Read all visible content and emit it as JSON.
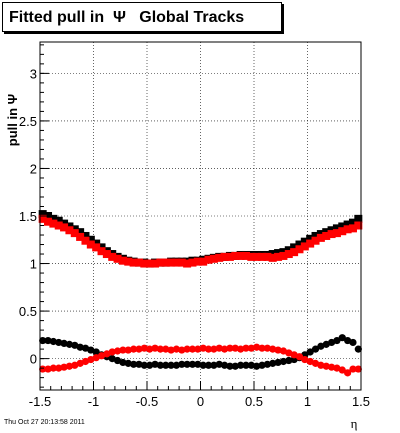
{
  "footer": {
    "timestamp": "Thu Oct 27 20:13:58 2011"
  },
  "chart_data": {
    "type": "scatter",
    "title": "Fitted pull in  Ψ   Global Tracks",
    "xlabel": "η",
    "ylabel": "pull in Ψ",
    "xlim": [
      -1.5,
      1.5
    ],
    "ylim": [
      -0.33,
      3.33
    ],
    "xticks": [
      -1.5,
      -1,
      -0.5,
      0,
      0.5,
      1,
      1.5
    ],
    "xtick_labels": [
      "-1.5",
      "-1",
      "-0.5",
      "0",
      "0.5",
      "1",
      "1.5"
    ],
    "yticks": [
      0,
      0.5,
      1,
      1.5,
      2,
      2.5,
      3
    ],
    "ytick_labels": [
      "0",
      "0.5",
      "1",
      "1.5",
      "2",
      "2.5",
      "3"
    ],
    "grid": true,
    "series": [
      {
        "color": "#000000",
        "marker": "square",
        "x": [
          -1.475,
          -1.425,
          -1.375,
          -1.325,
          -1.275,
          -1.225,
          -1.175,
          -1.125,
          -1.075,
          -1.025,
          -0.975,
          -0.925,
          -0.875,
          -0.825,
          -0.775,
          -0.725,
          -0.675,
          -0.625,
          -0.575,
          -0.525,
          -0.475,
          -0.425,
          -0.375,
          -0.325,
          -0.275,
          -0.225,
          -0.175,
          -0.125,
          -0.075,
          -0.025,
          0.025,
          0.075,
          0.125,
          0.175,
          0.225,
          0.275,
          0.325,
          0.375,
          0.425,
          0.475,
          0.525,
          0.575,
          0.625,
          0.675,
          0.725,
          0.775,
          0.825,
          0.875,
          0.925,
          0.975,
          1.025,
          1.075,
          1.125,
          1.175,
          1.225,
          1.275,
          1.325,
          1.375,
          1.425,
          1.475
        ],
        "y": [
          1.52,
          1.5,
          1.47,
          1.45,
          1.42,
          1.39,
          1.36,
          1.33,
          1.29,
          1.25,
          1.21,
          1.17,
          1.13,
          1.1,
          1.07,
          1.05,
          1.03,
          1.02,
          1.01,
          1.01,
          1.0,
          1.01,
          1.01,
          1.01,
          1.02,
          1.02,
          1.02,
          1.02,
          1.03,
          1.03,
          1.04,
          1.05,
          1.06,
          1.07,
          1.07,
          1.08,
          1.08,
          1.09,
          1.09,
          1.09,
          1.09,
          1.09,
          1.09,
          1.1,
          1.11,
          1.12,
          1.14,
          1.17,
          1.2,
          1.23,
          1.26,
          1.29,
          1.31,
          1.33,
          1.35,
          1.37,
          1.39,
          1.41,
          1.43,
          1.47
        ]
      },
      {
        "color": "#ff0000",
        "marker": "square",
        "x": [
          -1.475,
          -1.425,
          -1.375,
          -1.325,
          -1.275,
          -1.225,
          -1.175,
          -1.125,
          -1.075,
          -1.025,
          -0.975,
          -0.925,
          -0.875,
          -0.825,
          -0.775,
          -0.725,
          -0.675,
          -0.625,
          -0.575,
          -0.525,
          -0.475,
          -0.425,
          -0.375,
          -0.325,
          -0.275,
          -0.225,
          -0.175,
          -0.125,
          -0.075,
          -0.025,
          0.025,
          0.075,
          0.125,
          0.175,
          0.225,
          0.275,
          0.325,
          0.375,
          0.425,
          0.475,
          0.525,
          0.575,
          0.625,
          0.675,
          0.725,
          0.775,
          0.825,
          0.875,
          0.925,
          0.975,
          1.025,
          1.075,
          1.125,
          1.175,
          1.225,
          1.275,
          1.325,
          1.375,
          1.425,
          1.475
        ],
        "y": [
          1.47,
          1.44,
          1.42,
          1.4,
          1.38,
          1.35,
          1.32,
          1.28,
          1.24,
          1.2,
          1.17,
          1.13,
          1.1,
          1.07,
          1.05,
          1.03,
          1.02,
          1.01,
          1.01,
          1.0,
          1.0,
          1.0,
          1.01,
          1.01,
          1.01,
          1.01,
          1.01,
          1.0,
          1.01,
          1.02,
          1.02,
          1.04,
          1.05,
          1.06,
          1.07,
          1.07,
          1.08,
          1.08,
          1.08,
          1.07,
          1.07,
          1.07,
          1.07,
          1.06,
          1.07,
          1.08,
          1.1,
          1.12,
          1.15,
          1.18,
          1.21,
          1.24,
          1.27,
          1.29,
          1.31,
          1.32,
          1.34,
          1.36,
          1.37,
          1.4
        ]
      },
      {
        "color": "#000000",
        "marker": "circle",
        "x": [
          -1.475,
          -1.425,
          -1.375,
          -1.325,
          -1.275,
          -1.225,
          -1.175,
          -1.125,
          -1.075,
          -1.025,
          -0.975,
          -0.925,
          -0.875,
          -0.825,
          -0.775,
          -0.725,
          -0.675,
          -0.625,
          -0.575,
          -0.525,
          -0.475,
          -0.425,
          -0.375,
          -0.325,
          -0.275,
          -0.225,
          -0.175,
          -0.125,
          -0.075,
          -0.025,
          0.025,
          0.075,
          0.125,
          0.175,
          0.225,
          0.275,
          0.325,
          0.375,
          0.425,
          0.475,
          0.525,
          0.575,
          0.625,
          0.675,
          0.725,
          0.775,
          0.825,
          0.875,
          0.925,
          0.975,
          1.025,
          1.075,
          1.125,
          1.175,
          1.225,
          1.275,
          1.325,
          1.375,
          1.425,
          1.475
        ],
        "y": [
          0.19,
          0.19,
          0.18,
          0.17,
          0.16,
          0.15,
          0.14,
          0.12,
          0.11,
          0.09,
          0.07,
          0.04,
          0.02,
          0.0,
          -0.02,
          -0.04,
          -0.05,
          -0.06,
          -0.06,
          -0.07,
          -0.07,
          -0.06,
          -0.07,
          -0.07,
          -0.07,
          -0.07,
          -0.06,
          -0.06,
          -0.06,
          -0.06,
          -0.07,
          -0.07,
          -0.07,
          -0.06,
          -0.07,
          -0.08,
          -0.08,
          -0.07,
          -0.07,
          -0.07,
          -0.08,
          -0.07,
          -0.06,
          -0.05,
          -0.04,
          -0.03,
          -0.02,
          -0.01,
          0.01,
          0.04,
          0.07,
          0.1,
          0.13,
          0.15,
          0.17,
          0.19,
          0.22,
          0.19,
          0.17,
          0.1
        ]
      },
      {
        "color": "#ff0000",
        "marker": "circle",
        "x": [
          -1.475,
          -1.425,
          -1.375,
          -1.325,
          -1.275,
          -1.225,
          -1.175,
          -1.125,
          -1.075,
          -1.025,
          -0.975,
          -0.925,
          -0.875,
          -0.825,
          -0.775,
          -0.725,
          -0.675,
          -0.625,
          -0.575,
          -0.525,
          -0.475,
          -0.425,
          -0.375,
          -0.325,
          -0.275,
          -0.225,
          -0.175,
          -0.125,
          -0.075,
          -0.025,
          0.025,
          0.075,
          0.125,
          0.175,
          0.225,
          0.275,
          0.325,
          0.375,
          0.425,
          0.475,
          0.525,
          0.575,
          0.625,
          0.675,
          0.725,
          0.775,
          0.825,
          0.875,
          0.925,
          0.975,
          1.025,
          1.075,
          1.125,
          1.175,
          1.225,
          1.275,
          1.325,
          1.375,
          1.425,
          1.475
        ],
        "y": [
          -0.11,
          -0.11,
          -0.1,
          -0.1,
          -0.09,
          -0.08,
          -0.07,
          -0.05,
          -0.03,
          -0.01,
          0.01,
          0.03,
          0.05,
          0.07,
          0.08,
          0.09,
          0.09,
          0.1,
          0.1,
          0.11,
          0.1,
          0.11,
          0.1,
          0.1,
          0.09,
          0.1,
          0.09,
          0.1,
          0.1,
          0.1,
          0.11,
          0.1,
          0.1,
          0.11,
          0.1,
          0.11,
          0.11,
          0.1,
          0.11,
          0.11,
          0.12,
          0.11,
          0.11,
          0.1,
          0.09,
          0.08,
          0.06,
          0.04,
          0.02,
          -0.01,
          -0.03,
          -0.05,
          -0.07,
          -0.08,
          -0.09,
          -0.1,
          -0.12,
          -0.15,
          -0.11,
          -0.11
        ]
      }
    ]
  }
}
